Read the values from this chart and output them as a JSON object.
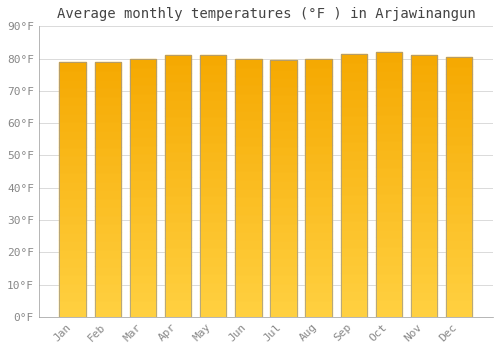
{
  "title": "Average monthly temperatures (°F ) in Arjawinangun",
  "months": [
    "Jan",
    "Feb",
    "Mar",
    "Apr",
    "May",
    "Jun",
    "Jul",
    "Aug",
    "Sep",
    "Oct",
    "Nov",
    "Dec"
  ],
  "values": [
    79,
    79,
    80,
    81,
    81,
    80,
    79.5,
    80,
    81.5,
    82,
    81,
    80.5
  ],
  "bar_color_top": "#F5A800",
  "bar_color_bottom": "#FFD040",
  "bar_edge_color": "#999999",
  "background_color": "#FFFFFF",
  "plot_bg_color": "#FFFFFF",
  "grid_color": "#CCCCCC",
  "title_fontsize": 10,
  "tick_fontsize": 8,
  "ylim": [
    0,
    90
  ],
  "yticks": [
    0,
    10,
    20,
    30,
    40,
    50,
    60,
    70,
    80,
    90
  ],
  "ytick_labels": [
    "0°F",
    "10°F",
    "20°F",
    "30°F",
    "40°F",
    "50°F",
    "60°F",
    "70°F",
    "80°F",
    "90°F"
  ],
  "bar_width": 0.75
}
